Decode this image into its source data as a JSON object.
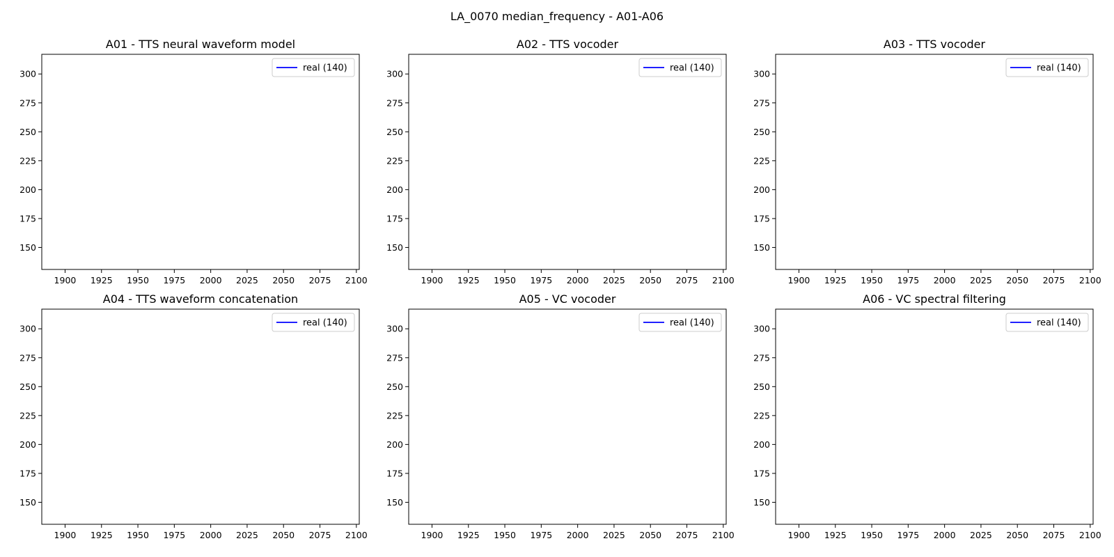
{
  "figure": {
    "suptitle": "LA_0070 median_frequency - A01-A06"
  },
  "chart_data": [
    {
      "type": "line",
      "title": "A01 - TTS neural waveform model",
      "xlabel": "",
      "ylabel": "",
      "xlim": [
        1884,
        2102
      ],
      "ylim": [
        131,
        317
      ],
      "x_ticks": [
        "1900",
        "1925",
        "1950",
        "1975",
        "2000",
        "2025",
        "2050",
        "2075",
        "2100"
      ],
      "y_ticks": [
        "150",
        "175",
        "200",
        "225",
        "250",
        "275",
        "300"
      ],
      "legend": {
        "placement": "upper-right",
        "entries": [
          {
            "label": "real (140)",
            "color": "#0000ff"
          }
        ]
      },
      "series": [
        {
          "name": "real (140)",
          "color": "#0000ff",
          "x": [],
          "y": []
        }
      ],
      "grid": false
    },
    {
      "type": "line",
      "title": "A02 - TTS vocoder",
      "xlabel": "",
      "ylabel": "",
      "xlim": [
        1884,
        2102
      ],
      "ylim": [
        131,
        317
      ],
      "x_ticks": [
        "1900",
        "1925",
        "1950",
        "1975",
        "2000",
        "2025",
        "2050",
        "2075",
        "2100"
      ],
      "y_ticks": [
        "150",
        "175",
        "200",
        "225",
        "250",
        "275",
        "300"
      ],
      "legend": {
        "placement": "upper-right",
        "entries": [
          {
            "label": "real (140)",
            "color": "#0000ff"
          }
        ]
      },
      "series": [
        {
          "name": "real (140)",
          "color": "#0000ff",
          "x": [],
          "y": []
        }
      ],
      "grid": false
    },
    {
      "type": "line",
      "title": "A03 - TTS vocoder",
      "xlabel": "",
      "ylabel": "",
      "xlim": [
        1884,
        2102
      ],
      "ylim": [
        131,
        317
      ],
      "x_ticks": [
        "1900",
        "1925",
        "1950",
        "1975",
        "2000",
        "2025",
        "2050",
        "2075",
        "2100"
      ],
      "y_ticks": [
        "150",
        "175",
        "200",
        "225",
        "250",
        "275",
        "300"
      ],
      "legend": {
        "placement": "upper-right",
        "entries": [
          {
            "label": "real (140)",
            "color": "#0000ff"
          }
        ]
      },
      "series": [
        {
          "name": "real (140)",
          "color": "#0000ff",
          "x": [],
          "y": []
        }
      ],
      "grid": false
    },
    {
      "type": "line",
      "title": "A04 - TTS waveform concatenation",
      "xlabel": "",
      "ylabel": "",
      "xlim": [
        1884,
        2102
      ],
      "ylim": [
        131,
        317
      ],
      "x_ticks": [
        "1900",
        "1925",
        "1950",
        "1975",
        "2000",
        "2025",
        "2050",
        "2075",
        "2100"
      ],
      "y_ticks": [
        "150",
        "175",
        "200",
        "225",
        "250",
        "275",
        "300"
      ],
      "legend": {
        "placement": "upper-right",
        "entries": [
          {
            "label": "real (140)",
            "color": "#0000ff"
          }
        ]
      },
      "series": [
        {
          "name": "real (140)",
          "color": "#0000ff",
          "x": [],
          "y": []
        }
      ],
      "grid": false
    },
    {
      "type": "line",
      "title": "A05 - VC vocoder",
      "xlabel": "",
      "ylabel": "",
      "xlim": [
        1884,
        2102
      ],
      "ylim": [
        131,
        317
      ],
      "x_ticks": [
        "1900",
        "1925",
        "1950",
        "1975",
        "2000",
        "2025",
        "2050",
        "2075",
        "2100"
      ],
      "y_ticks": [
        "150",
        "175",
        "200",
        "225",
        "250",
        "275",
        "300"
      ],
      "legend": {
        "placement": "upper-right",
        "entries": [
          {
            "label": "real (140)",
            "color": "#0000ff"
          }
        ]
      },
      "series": [
        {
          "name": "real (140)",
          "color": "#0000ff",
          "x": [],
          "y": []
        }
      ],
      "grid": false
    },
    {
      "type": "line",
      "title": "A06 - VC spectral filtering",
      "xlabel": "",
      "ylabel": "",
      "xlim": [
        1884,
        2102
      ],
      "ylim": [
        131,
        317
      ],
      "x_ticks": [
        "1900",
        "1925",
        "1950",
        "1975",
        "2000",
        "2025",
        "2050",
        "2075",
        "2100"
      ],
      "y_ticks": [
        "150",
        "175",
        "200",
        "225",
        "250",
        "275",
        "300"
      ],
      "legend": {
        "placement": "upper-right",
        "entries": [
          {
            "label": "real (140)",
            "color": "#0000ff"
          }
        ]
      },
      "series": [
        {
          "name": "real (140)",
          "color": "#0000ff",
          "x": [],
          "y": []
        }
      ],
      "grid": false
    }
  ]
}
